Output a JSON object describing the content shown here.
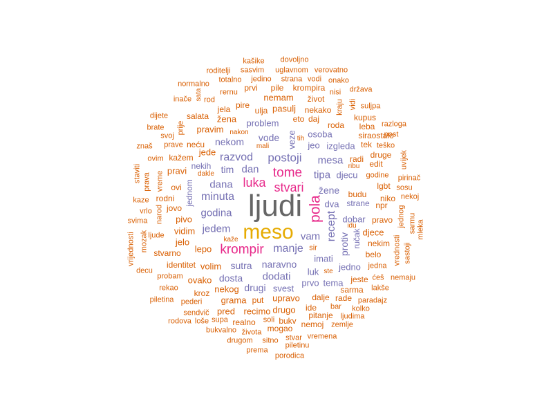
{
  "colors": {
    "c1": "#666666",
    "c2": "#D95F02",
    "c3": "#7570B3",
    "c4": "#E7298A",
    "c5": "#E6AB02"
  },
  "words": [
    {
      "t": "ljudi",
      "c": "c1"
    },
    {
      "t": "meso",
      "c": "c5"
    },
    {
      "t": "pola",
      "c": "c4"
    },
    {
      "t": "krompir",
      "c": "c4"
    },
    {
      "t": "tome",
      "c": "c4"
    },
    {
      "t": "luka",
      "c": "c4"
    },
    {
      "t": "stvari",
      "c": "c4"
    },
    {
      "t": "postoji",
      "c": "c3"
    },
    {
      "t": "razvod",
      "c": "c3"
    },
    {
      "t": "mesa",
      "c": "c3"
    },
    {
      "t": "recept",
      "c": "c3"
    },
    {
      "t": "manje",
      "c": "c3"
    },
    {
      "t": "minuta",
      "c": "c3"
    },
    {
      "t": "dana",
      "c": "c3"
    },
    {
      "t": "dodati",
      "c": "c3"
    },
    {
      "t": "godina",
      "c": "c3"
    },
    {
      "t": "jedem",
      "c": "c3"
    },
    {
      "t": "dan",
      "c": "c3"
    },
    {
      "t": "tipa",
      "c": "c3"
    },
    {
      "t": "djecu",
      "c": "c3"
    },
    {
      "t": "vam",
      "c": "c3"
    },
    {
      "t": "protiv",
      "c": "c3"
    },
    {
      "t": "vode",
      "c": "c3"
    },
    {
      "t": "nekom",
      "c": "c3"
    },
    {
      "t": "naravno",
      "c": "c3"
    },
    {
      "t": "dosta",
      "c": "c3"
    },
    {
      "t": "drugi",
      "c": "c3"
    },
    {
      "t": "imati",
      "c": "c3"
    },
    {
      "t": "sutra",
      "c": "c3"
    },
    {
      "t": "žene",
      "c": "c3"
    },
    {
      "t": "dobar",
      "c": "c3"
    },
    {
      "t": "dva",
      "c": "c3"
    },
    {
      "t": "veze",
      "c": "c3"
    },
    {
      "t": "problem",
      "c": "c3"
    },
    {
      "t": "izgleda",
      "c": "c3"
    },
    {
      "t": "luk",
      "c": "c3"
    },
    {
      "t": "osoba",
      "c": "c3"
    },
    {
      "t": "jedno",
      "c": "c3"
    },
    {
      "t": "tim",
      "c": "c3"
    },
    {
      "t": "jeo",
      "c": "c3"
    },
    {
      "t": "svest",
      "c": "c3"
    },
    {
      "t": "prvo",
      "c": "c3"
    },
    {
      "t": "tema",
      "c": "c3"
    },
    {
      "t": "nekih",
      "c": "c3"
    },
    {
      "t": "jednom",
      "c": "c3"
    },
    {
      "t": "ručak",
      "c": "c3"
    },
    {
      "t": "budu",
      "c": "c2"
    },
    {
      "t": "strane",
      "c": "c3"
    },
    {
      "t": "djece",
      "c": "c2"
    },
    {
      "t": "radi",
      "c": "c2"
    },
    {
      "t": "roda",
      "c": "c2"
    },
    {
      "t": "kupus",
      "c": "c2"
    },
    {
      "t": "leba",
      "c": "c2"
    },
    {
      "t": "siraostalo",
      "c": "c2"
    },
    {
      "t": "tek",
      "c": "c2"
    },
    {
      "t": "edit",
      "c": "c2"
    },
    {
      "t": "druge",
      "c": "c2"
    },
    {
      "t": "teško",
      "c": "c2"
    },
    {
      "t": "godine",
      "c": "c2"
    },
    {
      "t": "lgbt",
      "c": "c2"
    },
    {
      "t": "niko",
      "c": "c2"
    },
    {
      "t": "npr",
      "c": "c2"
    },
    {
      "t": "pravo",
      "c": "c2"
    },
    {
      "t": "nekim",
      "c": "c2"
    },
    {
      "t": "belo",
      "c": "c2"
    },
    {
      "t": "jedna",
      "c": "c2"
    },
    {
      "t": "ćeš",
      "c": "c2"
    },
    {
      "t": "nemaju",
      "c": "c2"
    },
    {
      "t": "lakše",
      "c": "c2"
    },
    {
      "t": "paradajz",
      "c": "c2"
    },
    {
      "t": "kolko",
      "c": "c2"
    },
    {
      "t": "jeste",
      "c": "c2"
    },
    {
      "t": "sarma",
      "c": "c2"
    },
    {
      "t": "rade",
      "c": "c2"
    },
    {
      "t": "bar",
      "c": "c2"
    },
    {
      "t": "ljudima",
      "c": "c2"
    },
    {
      "t": "zemlje",
      "c": "c2"
    },
    {
      "t": "dalje",
      "c": "c2"
    },
    {
      "t": "ide",
      "c": "c2"
    },
    {
      "t": "pitanje",
      "c": "c2"
    },
    {
      "t": "nemoj",
      "c": "c2"
    },
    {
      "t": "vremena",
      "c": "c2"
    },
    {
      "t": "stvar",
      "c": "c2"
    },
    {
      "t": "piletinu",
      "c": "c2"
    },
    {
      "t": "porodica",
      "c": "c2"
    },
    {
      "t": "prema",
      "c": "c2"
    },
    {
      "t": "sitno",
      "c": "c2"
    },
    {
      "t": "drugom",
      "c": "c2"
    },
    {
      "t": "života",
      "c": "c2"
    },
    {
      "t": "bukvalno",
      "c": "c2"
    },
    {
      "t": "soli",
      "c": "c2"
    },
    {
      "t": "bukv",
      "c": "c2"
    },
    {
      "t": "mogao",
      "c": "c2"
    },
    {
      "t": "drugo",
      "c": "c2"
    },
    {
      "t": "upravo",
      "c": "c2"
    },
    {
      "t": "recimo",
      "c": "c2"
    },
    {
      "t": "realno",
      "c": "c2"
    },
    {
      "t": "supa",
      "c": "c2"
    },
    {
      "t": "loše",
      "c": "c2"
    },
    {
      "t": "rodova",
      "c": "c2"
    },
    {
      "t": "sendvič",
      "c": "c2"
    },
    {
      "t": "pred",
      "c": "c2"
    },
    {
      "t": "grama",
      "c": "c2"
    },
    {
      "t": "put",
      "c": "c2"
    },
    {
      "t": "nekog",
      "c": "c2"
    },
    {
      "t": "kroz",
      "c": "c2"
    },
    {
      "t": "pederi",
      "c": "c2"
    },
    {
      "t": "piletina",
      "c": "c2"
    },
    {
      "t": "rekao",
      "c": "c2"
    },
    {
      "t": "probam",
      "c": "c2"
    },
    {
      "t": "decu",
      "c": "c2"
    },
    {
      "t": "ovako",
      "c": "c2"
    },
    {
      "t": "volim",
      "c": "c2"
    },
    {
      "t": "identitet",
      "c": "c2"
    },
    {
      "t": "stvarno",
      "c": "c2"
    },
    {
      "t": "lepo",
      "c": "c2"
    },
    {
      "t": "jelo",
      "c": "c2"
    },
    {
      "t": "vidim",
      "c": "c2"
    },
    {
      "t": "pivo",
      "c": "c2"
    },
    {
      "t": "jovo",
      "c": "c2"
    },
    {
      "t": "rodni",
      "c": "c2"
    },
    {
      "t": "ovi",
      "c": "c2"
    },
    {
      "t": "pravi",
      "c": "c2"
    },
    {
      "t": "kažem",
      "c": "c2"
    },
    {
      "t": "jede",
      "c": "c2"
    },
    {
      "t": "neću",
      "c": "c2"
    },
    {
      "t": "prave",
      "c": "c2"
    },
    {
      "t": "pravim",
      "c": "c2"
    },
    {
      "t": "salata",
      "c": "c2"
    },
    {
      "t": "žena",
      "c": "c2"
    },
    {
      "t": "jela",
      "c": "c2"
    },
    {
      "t": "pire",
      "c": "c2"
    },
    {
      "t": "ulja",
      "c": "c2"
    },
    {
      "t": "pasulj",
      "c": "c2"
    },
    {
      "t": "nekako",
      "c": "c2"
    },
    {
      "t": "eto",
      "c": "c2"
    },
    {
      "t": "daj",
      "c": "c2"
    },
    {
      "t": "nemam",
      "c": "c2"
    },
    {
      "t": "život",
      "c": "c2"
    },
    {
      "t": "prvi",
      "c": "c2"
    },
    {
      "t": "pile",
      "c": "c2"
    },
    {
      "t": "krompira",
      "c": "c2"
    },
    {
      "t": "rernu",
      "c": "c2"
    },
    {
      "t": "nisi",
      "c": "c2"
    },
    {
      "t": "država",
      "c": "c2"
    },
    {
      "t": "kraju",
      "c": "c2"
    },
    {
      "t": "vidi",
      "c": "c2"
    },
    {
      "t": "suljpa",
      "c": "c2"
    },
    {
      "t": "razloga",
      "c": "c2"
    },
    {
      "t": "post",
      "c": "c2"
    },
    {
      "t": "uvijek",
      "c": "c2"
    },
    {
      "t": "pirinač",
      "c": "c2"
    },
    {
      "t": "sosu",
      "c": "c2"
    },
    {
      "t": "nekoj",
      "c": "c2"
    },
    {
      "t": "jednog",
      "c": "c2"
    },
    {
      "t": "sarmu",
      "c": "c2"
    },
    {
      "t": "mleka",
      "c": "c2"
    },
    {
      "t": "vrednosti",
      "c": "c2"
    },
    {
      "t": "sastoji",
      "c": "c2"
    },
    {
      "t": "ribu",
      "c": "c2"
    },
    {
      "t": "dakle",
      "c": "c2"
    },
    {
      "t": "kaže",
      "c": "c2"
    },
    {
      "t": "sir",
      "c": "c2"
    },
    {
      "t": "idu",
      "c": "c2"
    },
    {
      "t": "ste",
      "c": "c2"
    },
    {
      "t": "tih",
      "c": "c2"
    },
    {
      "t": "mali",
      "c": "c2"
    },
    {
      "t": "nakon",
      "c": "c2"
    },
    {
      "t": "kašike",
      "c": "c2"
    },
    {
      "t": "dovoljno",
      "c": "c2"
    },
    {
      "t": "roditelji",
      "c": "c2"
    },
    {
      "t": "sasvim",
      "c": "c2"
    },
    {
      "t": "uglavnom",
      "c": "c2"
    },
    {
      "t": "verovatno",
      "c": "c2"
    },
    {
      "t": "normalno",
      "c": "c2"
    },
    {
      "t": "totalno",
      "c": "c2"
    },
    {
      "t": "jedino",
      "c": "c2"
    },
    {
      "t": "strana",
      "c": "c2"
    },
    {
      "t": "vodi",
      "c": "c2"
    },
    {
      "t": "onako",
      "c": "c2"
    },
    {
      "t": "sata",
      "c": "c2"
    },
    {
      "t": "inače",
      "c": "c2"
    },
    {
      "t": "rod",
      "c": "c2"
    },
    {
      "t": "dijete",
      "c": "c2"
    },
    {
      "t": "prije",
      "c": "c2"
    },
    {
      "t": "brate",
      "c": "c2"
    },
    {
      "t": "svoj",
      "c": "c2"
    },
    {
      "t": "znaš",
      "c": "c2"
    },
    {
      "t": "ovim",
      "c": "c2"
    },
    {
      "t": "staviti",
      "c": "c2"
    },
    {
      "t": "prava",
      "c": "c2"
    },
    {
      "t": "vreme",
      "c": "c2"
    },
    {
      "t": "kaze",
      "c": "c2"
    },
    {
      "t": "vrlo",
      "c": "c2"
    },
    {
      "t": "narod",
      "c": "c2"
    },
    {
      "t": "svima",
      "c": "c2"
    },
    {
      "t": "mozak",
      "c": "c2"
    },
    {
      "t": "ljude",
      "c": "c2"
    },
    {
      "t": "vrijednosti",
      "c": "c2"
    }
  ]
}
